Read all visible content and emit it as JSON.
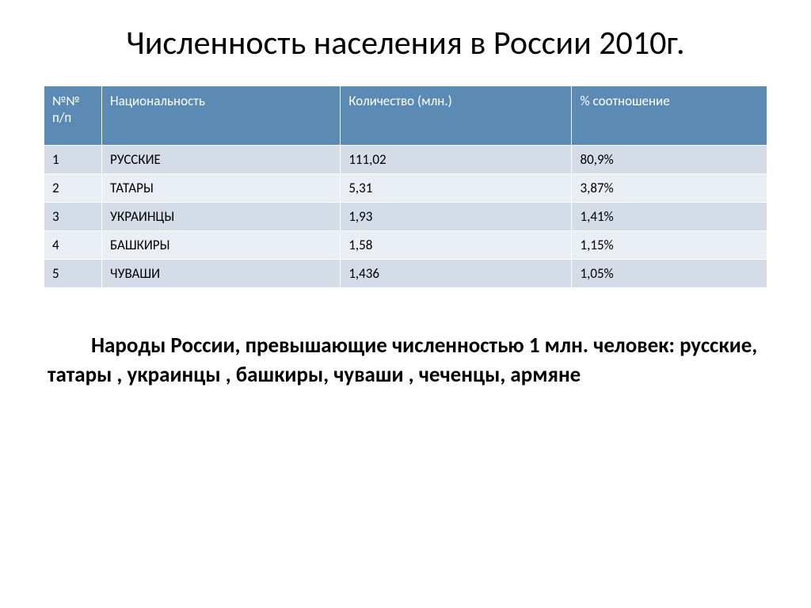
{
  "title": "Численность населения в России 2010г.",
  "table": {
    "header_bg": "#5b8bb5",
    "header_fg": "#ffffff",
    "row_odd_bg": "#d3dce7",
    "row_even_bg": "#eaeef5",
    "columns": [
      {
        "label": "№№ п/п",
        "width": "8%"
      },
      {
        "label": "Национальность",
        "width": "33%"
      },
      {
        "label": "Количество (млн.)",
        "width": "32%"
      },
      {
        "label": "% соотношение",
        "width": "27%"
      }
    ],
    "rows": [
      {
        "n": "1",
        "nat": "Русские",
        "qty": "111,02",
        "pct": "80,9%"
      },
      {
        "n": "2",
        "nat": "Татары",
        "qty": "5,31",
        "pct": "3,87%"
      },
      {
        "n": "3",
        "nat": "Украинцы",
        "qty": "1,93",
        "pct": "1,41%"
      },
      {
        "n": "4",
        "nat": "Башкиры",
        "qty": "1,58",
        "pct": "1,15%"
      },
      {
        "n": "5",
        "nat": "Чуваши",
        "qty": "1,436",
        "pct": "1,05%"
      }
    ]
  },
  "caption": "Народы России, превышающие численностью 1 млн. человек: русские, татары , украинцы , башкиры, чуваши , чеченцы, армяне",
  "styles": {
    "title_fontsize": 42,
    "cell_fontsize": 17,
    "caption_fontsize": 27,
    "background": "#ffffff",
    "text_color": "#000000"
  }
}
